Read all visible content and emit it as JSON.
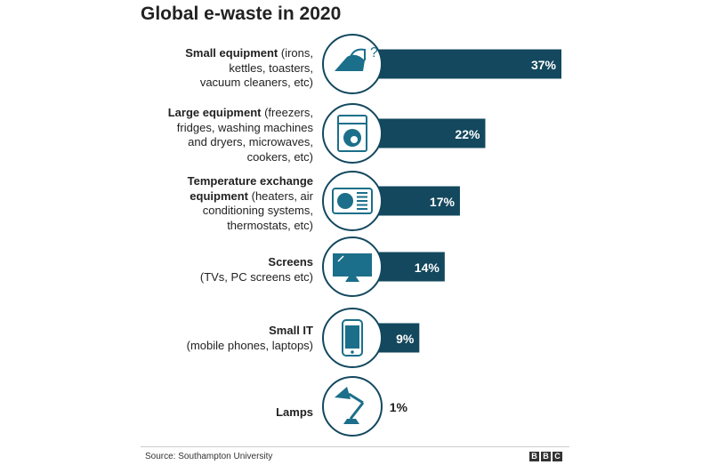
{
  "chart_data": {
    "type": "bar",
    "orientation": "horizontal",
    "title": "Global e-waste in 2020",
    "value_suffix": "%",
    "xlim": [
      0,
      37
    ],
    "grid": false,
    "categories": [
      {
        "bold": "Small equipment",
        "rest": " (irons, kettles, toasters, vacuum cleaners, etc)",
        "icon": "iron-icon",
        "value": 37
      },
      {
        "bold": "Large equipment",
        "rest": " (freezers, fridges, washing machines and dryers, microwaves, cookers, etc)",
        "icon": "washing-machine-icon",
        "value": 22
      },
      {
        "bold": "Temperature exchange equipment",
        "rest": " (heaters, air conditioning systems, thermostats, etc)",
        "icon": "air-conditioner-icon",
        "value": 17
      },
      {
        "bold": "Screens",
        "rest": "(TVs, PC screens etc)",
        "icon": "tv-screen-icon",
        "value": 14
      },
      {
        "bold": "Small IT",
        "rest": "(mobile phones, laptops)",
        "icon": "mobile-phone-icon",
        "value": 9
      },
      {
        "bold": "Lamps",
        "rest": "",
        "icon": "desk-lamp-icon",
        "value": 1
      }
    ],
    "colors": {
      "bar": "#13485e",
      "circle_stroke": "#13485e",
      "icon": "#1b6f8a",
      "label_on_bar": "#ffffff",
      "label_outside": "#222222"
    }
  },
  "footer": {
    "source": "Source: Southampton University",
    "logo_letters": [
      "B",
      "B",
      "C"
    ]
  }
}
